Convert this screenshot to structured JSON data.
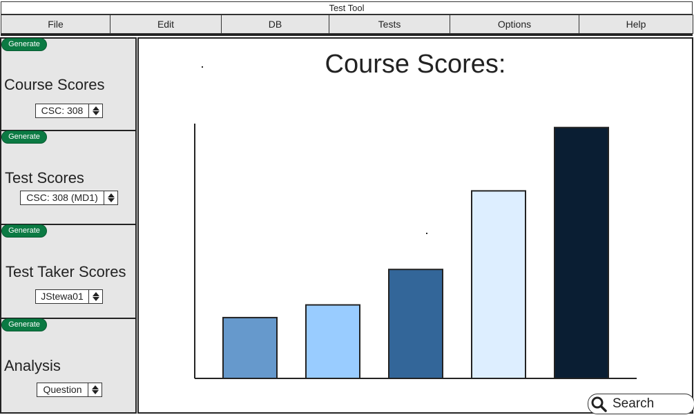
{
  "app": {
    "title": "Test Tool"
  },
  "menu": [
    {
      "label": "File",
      "name": "menu-file"
    },
    {
      "label": "Edit",
      "name": "menu-edit"
    },
    {
      "label": "DB",
      "name": "menu-db"
    },
    {
      "label": "Tests",
      "name": "menu-tests"
    },
    {
      "label": "Options",
      "name": "menu-options"
    },
    {
      "label": "Help",
      "name": "menu-help"
    }
  ],
  "sidebar": {
    "panels": [
      {
        "button": "Generate",
        "title": "Course Scores",
        "value": "CSC: 308"
      },
      {
        "button": "Generate",
        "title": "Test Scores",
        "value": "CSC: 308 (MD1)"
      },
      {
        "button": "Generate",
        "title": "Test Taker Scores",
        "value": "JStewa01"
      },
      {
        "button": "Generate",
        "title": "Analysis",
        "value": "Question"
      }
    ]
  },
  "main": {
    "chart_title": "Course Scores:",
    "search_placeholder": "Search"
  },
  "colors": {
    "generate_button": "#0b7a43",
    "panel_bg": "#e6e6e6",
    "bars": [
      "#6699cc",
      "#99ccff",
      "#336699",
      "#ddeeff",
      "#0a1e33"
    ]
  },
  "chart_data": {
    "type": "bar",
    "title": "Course Scores:",
    "categories": [
      "",
      "",
      "",
      "",
      ""
    ],
    "values": [
      24,
      29,
      43,
      74,
      99
    ],
    "ylim": [
      0,
      100
    ],
    "grid": false,
    "legend": "none"
  }
}
